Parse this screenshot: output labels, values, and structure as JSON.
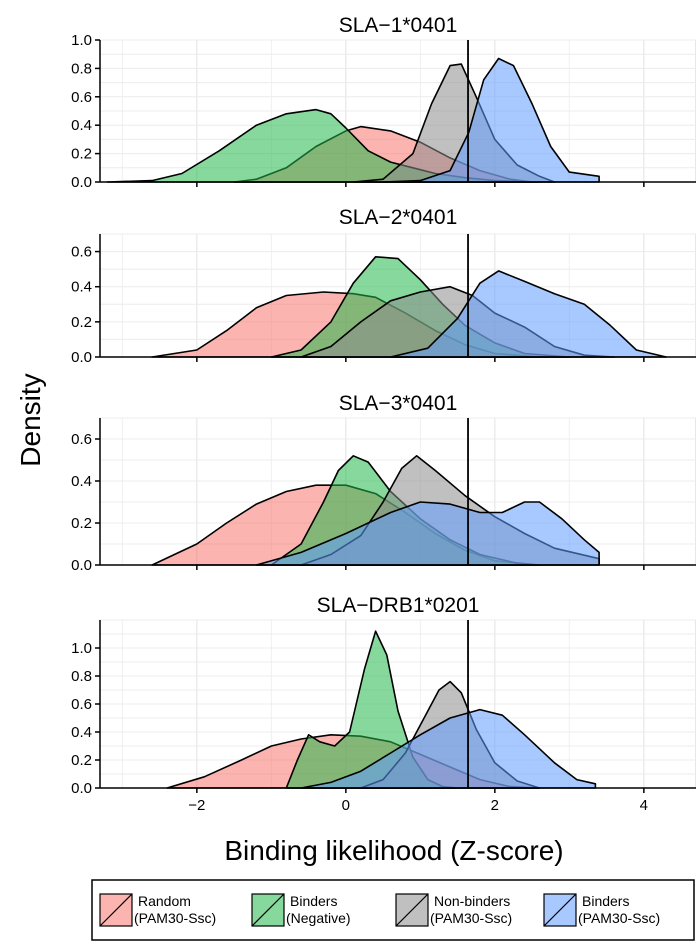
{
  "chart_data": {
    "type": "area",
    "xlabel": "Binding likelihood (Z-score)",
    "ylabel": "Density",
    "xlim": [
      -3.3,
      4.7
    ],
    "x_ticks": [
      -2,
      0,
      2,
      4
    ],
    "x_tick_labels": [
      "−2",
      "0",
      "2",
      "4"
    ],
    "threshold_x": 1.64,
    "legend": {
      "placement": "bottom",
      "entries": [
        {
          "key": "random",
          "line1": "Random",
          "line2": "(PAM30-Ssc)",
          "color": "#F8766D"
        },
        {
          "key": "binders_neg",
          "line1": "Binders",
          "line2": "(Negative)",
          "color": "#22B84A"
        },
        {
          "key": "nonbinders",
          "line1": "Non-binders",
          "line2": "(PAM30-Ssc)",
          "color": "#8C8C8C"
        },
        {
          "key": "binders_pam",
          "line1": "Binders",
          "line2": "(PAM30-Ssc)",
          "color": "#619CFF"
        }
      ]
    },
    "panels": [
      {
        "title": "SLA−1*0401",
        "ylim": [
          0,
          1.0
        ],
        "y_ticks": [
          0.0,
          0.2,
          0.4,
          0.6,
          0.8,
          1.0
        ],
        "y_tick_labels": [
          "0.0",
          "0.2",
          "0.4",
          "0.6",
          "0.8",
          "1.0"
        ],
        "series": [
          {
            "key": "random",
            "points": [
              [
                -1.5,
                0
              ],
              [
                -1.2,
                0.02
              ],
              [
                -0.8,
                0.1
              ],
              [
                -0.4,
                0.25
              ],
              [
                0,
                0.36
              ],
              [
                0.2,
                0.39
              ],
              [
                0.6,
                0.36
              ],
              [
                1.0,
                0.28
              ],
              [
                1.4,
                0.17
              ],
              [
                1.8,
                0.08
              ],
              [
                2.2,
                0.02
              ],
              [
                2.5,
                0
              ]
            ]
          },
          {
            "key": "binders_neg",
            "points": [
              [
                -3.2,
                0
              ],
              [
                -2.6,
                0.01
              ],
              [
                -2.2,
                0.06
              ],
              [
                -1.7,
                0.22
              ],
              [
                -1.2,
                0.4
              ],
              [
                -0.8,
                0.48
              ],
              [
                -0.4,
                0.51
              ],
              [
                -0.2,
                0.48
              ],
              [
                0,
                0.38
              ],
              [
                0.3,
                0.22
              ],
              [
                0.6,
                0.14
              ],
              [
                0.9,
                0.1
              ],
              [
                1.2,
                0.06
              ],
              [
                1.6,
                0.03
              ],
              [
                2.0,
                0.01
              ],
              [
                2.6,
                0
              ]
            ]
          },
          {
            "key": "nonbinders",
            "points": [
              [
                0.1,
                0
              ],
              [
                0.5,
                0.02
              ],
              [
                0.9,
                0.2
              ],
              [
                1.15,
                0.55
              ],
              [
                1.4,
                0.82
              ],
              [
                1.55,
                0.83
              ],
              [
                1.75,
                0.6
              ],
              [
                2.0,
                0.3
              ],
              [
                2.3,
                0.12
              ],
              [
                2.6,
                0.04
              ],
              [
                2.8,
                0
              ]
            ]
          },
          {
            "key": "binders_pam",
            "points": [
              [
                0.5,
                0
              ],
              [
                1.0,
                0.01
              ],
              [
                1.4,
                0.08
              ],
              [
                1.65,
                0.35
              ],
              [
                1.85,
                0.72
              ],
              [
                2.05,
                0.87
              ],
              [
                2.25,
                0.82
              ],
              [
                2.5,
                0.55
              ],
              [
                2.75,
                0.25
              ],
              [
                3.0,
                0.07
              ],
              [
                3.4,
                0.04
              ],
              [
                3.4,
                0
              ]
            ]
          }
        ]
      },
      {
        "title": "SLA−2*0401",
        "ylim": [
          0,
          0.7
        ],
        "y_ticks": [
          0.0,
          0.2,
          0.4,
          0.6
        ],
        "y_tick_labels": [
          "0.0",
          "0.2",
          "0.4",
          "0.6"
        ],
        "series": [
          {
            "key": "random",
            "points": [
              [
                -2.6,
                0
              ],
              [
                -2.0,
                0.04
              ],
              [
                -1.6,
                0.15
              ],
              [
                -1.2,
                0.28
              ],
              [
                -0.8,
                0.35
              ],
              [
                -0.3,
                0.37
              ],
              [
                0.1,
                0.36
              ],
              [
                0.4,
                0.34
              ],
              [
                0.8,
                0.25
              ],
              [
                1.2,
                0.15
              ],
              [
                1.6,
                0.07
              ],
              [
                2.0,
                0.02
              ],
              [
                2.6,
                0
              ]
            ]
          },
          {
            "key": "binders_neg",
            "points": [
              [
                -1.0,
                0
              ],
              [
                -0.6,
                0.04
              ],
              [
                -0.2,
                0.2
              ],
              [
                0.1,
                0.42
              ],
              [
                0.4,
                0.57
              ],
              [
                0.7,
                0.56
              ],
              [
                1.0,
                0.44
              ],
              [
                1.3,
                0.3
              ],
              [
                1.6,
                0.18
              ],
              [
                2.0,
                0.08
              ],
              [
                2.4,
                0.02
              ],
              [
                3.0,
                0
              ]
            ]
          },
          {
            "key": "nonbinders",
            "points": [
              [
                -0.6,
                0
              ],
              [
                -0.2,
                0.06
              ],
              [
                0.2,
                0.2
              ],
              [
                0.6,
                0.32
              ],
              [
                1.0,
                0.37
              ],
              [
                1.4,
                0.4
              ],
              [
                1.7,
                0.35
              ],
              [
                2.0,
                0.25
              ],
              [
                2.4,
                0.17
              ],
              [
                2.8,
                0.06
              ],
              [
                3.2,
                0.01
              ],
              [
                3.6,
                0
              ]
            ]
          },
          {
            "key": "binders_pam",
            "points": [
              [
                0.6,
                0
              ],
              [
                1.1,
                0.05
              ],
              [
                1.5,
                0.22
              ],
              [
                1.8,
                0.42
              ],
              [
                2.05,
                0.49
              ],
              [
                2.4,
                0.43
              ],
              [
                2.8,
                0.36
              ],
              [
                3.2,
                0.3
              ],
              [
                3.55,
                0.18
              ],
              [
                3.9,
                0.04
              ],
              [
                4.3,
                0
              ]
            ]
          }
        ]
      },
      {
        "title": "SLA−3*0401",
        "ylim": [
          0,
          0.7
        ],
        "y_ticks": [
          0.0,
          0.2,
          0.4,
          0.6
        ],
        "y_tick_labels": [
          "0.0",
          "0.2",
          "0.4",
          "0.6"
        ],
        "series": [
          {
            "key": "random",
            "points": [
              [
                -2.6,
                0
              ],
              [
                -2.0,
                0.1
              ],
              [
                -1.6,
                0.2
              ],
              [
                -1.2,
                0.29
              ],
              [
                -0.8,
                0.35
              ],
              [
                -0.4,
                0.38
              ],
              [
                0,
                0.38
              ],
              [
                0.4,
                0.34
              ],
              [
                0.8,
                0.25
              ],
              [
                1.2,
                0.15
              ],
              [
                1.6,
                0.07
              ],
              [
                2.0,
                0.02
              ],
              [
                2.6,
                0
              ]
            ]
          },
          {
            "key": "binders_neg",
            "points": [
              [
                -1.0,
                0
              ],
              [
                -0.6,
                0.1
              ],
              [
                -0.3,
                0.3
              ],
              [
                -0.1,
                0.45
              ],
              [
                0.1,
                0.52
              ],
              [
                0.3,
                0.49
              ],
              [
                0.6,
                0.35
              ],
              [
                1.0,
                0.22
              ],
              [
                1.4,
                0.12
              ],
              [
                1.8,
                0.05
              ],
              [
                2.4,
                0
              ]
            ]
          },
          {
            "key": "nonbinders",
            "points": [
              [
                -0.6,
                0
              ],
              [
                -0.2,
                0.05
              ],
              [
                0.2,
                0.14
              ],
              [
                0.5,
                0.3
              ],
              [
                0.75,
                0.46
              ],
              [
                0.95,
                0.52
              ],
              [
                1.2,
                0.45
              ],
              [
                1.6,
                0.33
              ],
              [
                2.0,
                0.23
              ],
              [
                2.4,
                0.15
              ],
              [
                2.8,
                0.08
              ],
              [
                3.4,
                0.03
              ],
              [
                3.4,
                0
              ]
            ]
          },
          {
            "key": "binders_pam",
            "points": [
              [
                -1.2,
                0
              ],
              [
                -0.6,
                0.06
              ],
              [
                0,
                0.15
              ],
              [
                0.6,
                0.25
              ],
              [
                1.0,
                0.3
              ],
              [
                1.4,
                0.29
              ],
              [
                1.8,
                0.25
              ],
              [
                2.1,
                0.25
              ],
              [
                2.4,
                0.3
              ],
              [
                2.6,
                0.3
              ],
              [
                2.9,
                0.22
              ],
              [
                3.2,
                0.12
              ],
              [
                3.4,
                0.06
              ],
              [
                3.4,
                0
              ]
            ]
          }
        ]
      },
      {
        "title": "SLA−DRB1*0201",
        "ylim": [
          0,
          1.2
        ],
        "y_ticks": [
          0.0,
          0.2,
          0.4,
          0.6,
          0.8,
          1.0
        ],
        "y_tick_labels": [
          "0.0",
          "0.2",
          "0.4",
          "0.6",
          "0.8",
          "1.0"
        ],
        "series": [
          {
            "key": "random",
            "points": [
              [
                -2.4,
                0
              ],
              [
                -1.9,
                0.08
              ],
              [
                -1.4,
                0.2
              ],
              [
                -1.0,
                0.3
              ],
              [
                -0.6,
                0.35
              ],
              [
                -0.2,
                0.38
              ],
              [
                0.2,
                0.37
              ],
              [
                0.6,
                0.33
              ],
              [
                1.0,
                0.24
              ],
              [
                1.4,
                0.15
              ],
              [
                1.8,
                0.06
              ],
              [
                2.2,
                0.01
              ],
              [
                2.6,
                0
              ]
            ]
          },
          {
            "key": "binders_neg",
            "points": [
              [
                -0.8,
                0
              ],
              [
                -0.65,
                0.2
              ],
              [
                -0.5,
                0.38
              ],
              [
                -0.35,
                0.33
              ],
              [
                -0.15,
                0.3
              ],
              [
                0.05,
                0.4
              ],
              [
                0.25,
                0.85
              ],
              [
                0.4,
                1.12
              ],
              [
                0.55,
                0.95
              ],
              [
                0.7,
                0.55
              ],
              [
                0.9,
                0.22
              ],
              [
                1.1,
                0.06
              ],
              [
                1.3,
                0.01
              ],
              [
                1.5,
                0
              ]
            ]
          },
          {
            "key": "nonbinders",
            "points": [
              [
                0.2,
                0
              ],
              [
                0.5,
                0.06
              ],
              [
                0.8,
                0.25
              ],
              [
                1.05,
                0.5
              ],
              [
                1.25,
                0.7
              ],
              [
                1.4,
                0.76
              ],
              [
                1.55,
                0.68
              ],
              [
                1.75,
                0.42
              ],
              [
                2.0,
                0.18
              ],
              [
                2.3,
                0.05
              ],
              [
                2.6,
                0
              ]
            ]
          },
          {
            "key": "binders_pam",
            "points": [
              [
                -0.6,
                0
              ],
              [
                -0.2,
                0.04
              ],
              [
                0.2,
                0.12
              ],
              [
                0.6,
                0.25
              ],
              [
                1.0,
                0.38
              ],
              [
                1.4,
                0.5
              ],
              [
                1.8,
                0.56
              ],
              [
                2.1,
                0.52
              ],
              [
                2.4,
                0.38
              ],
              [
                2.8,
                0.18
              ],
              [
                3.1,
                0.06
              ],
              [
                3.35,
                0.03
              ],
              [
                3.35,
                0
              ]
            ]
          }
        ]
      }
    ]
  }
}
